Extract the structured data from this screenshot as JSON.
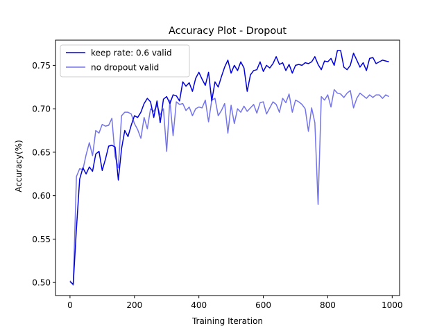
{
  "chart_data": {
    "type": "line",
    "title": "Accuracy Plot - Dropout",
    "xlabel": "Training Iteration",
    "ylabel": "Accuracy(%)",
    "xlim": [
      -45,
      1023
    ],
    "ylim": [
      0.485,
      0.779
    ],
    "xticks": [
      0,
      200,
      400,
      600,
      800,
      1000
    ],
    "yticks": [
      0.5,
      0.55,
      0.6,
      0.65,
      0.7,
      0.75
    ],
    "ytick_format": 2,
    "grid": false,
    "legend_position": "top-left",
    "x": [
      0,
      10,
      20,
      30,
      40,
      50,
      60,
      70,
      80,
      90,
      100,
      110,
      120,
      130,
      140,
      150,
      160,
      170,
      180,
      190,
      200,
      210,
      220,
      230,
      240,
      250,
      260,
      270,
      280,
      290,
      300,
      310,
      320,
      330,
      340,
      350,
      360,
      370,
      380,
      390,
      400,
      410,
      420,
      430,
      440,
      450,
      460,
      470,
      480,
      490,
      500,
      510,
      520,
      530,
      540,
      550,
      560,
      570,
      580,
      590,
      600,
      610,
      620,
      630,
      640,
      650,
      660,
      670,
      680,
      690,
      700,
      710,
      720,
      730,
      740,
      750,
      760,
      770,
      780,
      790,
      800,
      810,
      820,
      830,
      840,
      850,
      860,
      870,
      880,
      890,
      900,
      910,
      920,
      930,
      940,
      950,
      960,
      970,
      980,
      990
    ],
    "series": [
      {
        "name": "keep rate: 0.6 valid",
        "color": "#0000dd",
        "opacity": 1.0,
        "values": [
          0.501,
          0.498,
          0.562,
          0.619,
          0.632,
          0.625,
          0.633,
          0.628,
          0.648,
          0.651,
          0.629,
          0.642,
          0.657,
          0.658,
          0.656,
          0.618,
          0.654,
          0.675,
          0.668,
          0.681,
          0.692,
          0.69,
          0.696,
          0.706,
          0.712,
          0.708,
          0.69,
          0.709,
          0.684,
          0.711,
          0.714,
          0.706,
          0.716,
          0.715,
          0.709,
          0.731,
          0.726,
          0.73,
          0.72,
          0.735,
          0.742,
          0.734,
          0.727,
          0.742,
          0.709,
          0.731,
          0.725,
          0.737,
          0.748,
          0.756,
          0.741,
          0.75,
          0.744,
          0.754,
          0.747,
          0.72,
          0.739,
          0.744,
          0.745,
          0.754,
          0.743,
          0.75,
          0.747,
          0.752,
          0.76,
          0.751,
          0.753,
          0.744,
          0.751,
          0.741,
          0.75,
          0.751,
          0.75,
          0.753,
          0.752,
          0.754,
          0.76,
          0.751,
          0.745,
          0.755,
          0.754,
          0.758,
          0.75,
          0.767,
          0.767,
          0.748,
          0.745,
          0.75,
          0.764,
          0.756,
          0.748,
          0.753,
          0.744,
          0.758,
          0.759,
          0.752,
          0.754,
          0.756,
          0.755,
          0.754
        ]
      },
      {
        "name": "no dropout valid",
        "color": "#0000dd",
        "opacity": 0.55,
        "values": [
          0.502,
          0.497,
          0.622,
          0.631,
          0.63,
          0.647,
          0.661,
          0.646,
          0.675,
          0.672,
          0.682,
          0.68,
          0.681,
          0.689,
          0.645,
          0.632,
          0.692,
          0.696,
          0.696,
          0.694,
          0.683,
          0.676,
          0.666,
          0.69,
          0.677,
          0.7,
          0.697,
          0.704,
          0.693,
          0.7,
          0.651,
          0.71,
          0.669,
          0.708,
          0.705,
          0.706,
          0.698,
          0.702,
          0.692,
          0.7,
          0.702,
          0.701,
          0.71,
          0.685,
          0.71,
          0.712,
          0.692,
          0.698,
          0.706,
          0.672,
          0.704,
          0.683,
          0.7,
          0.696,
          0.703,
          0.697,
          0.701,
          0.705,
          0.695,
          0.707,
          0.708,
          0.694,
          0.701,
          0.708,
          0.705,
          0.696,
          0.712,
          0.707,
          0.717,
          0.696,
          0.71,
          0.708,
          0.705,
          0.7,
          0.674,
          0.701,
          0.684,
          0.59,
          0.714,
          0.71,
          0.716,
          0.702,
          0.722,
          0.718,
          0.717,
          0.713,
          0.718,
          0.721,
          0.701,
          0.712,
          0.718,
          0.715,
          0.712,
          0.716,
          0.713,
          0.716,
          0.716,
          0.712,
          0.716,
          0.714
        ]
      }
    ]
  }
}
